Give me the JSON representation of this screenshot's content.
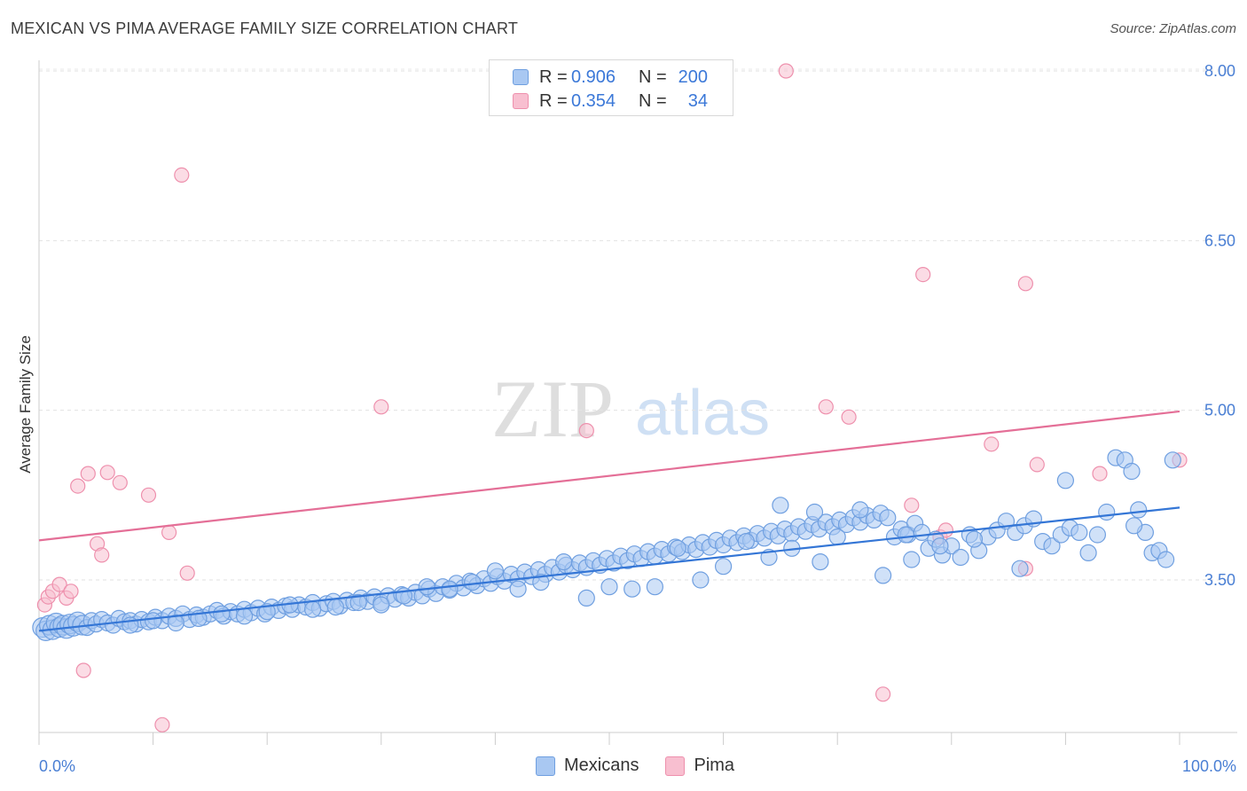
{
  "title": "MEXICAN VS PIMA AVERAGE FAMILY SIZE CORRELATION CHART",
  "source": "Source: ZipAtlas.com",
  "watermark": {
    "zip": "ZIP",
    "atlas": "atlas"
  },
  "legend": {
    "rows": [
      {
        "r_label": "R =",
        "r_value": "0.906",
        "n_label": "N =",
        "n_value": "200"
      },
      {
        "r_label": "R =",
        "r_value": "0.354",
        "n_label": "N =",
        "n_value": "34"
      }
    ]
  },
  "bottom_legend": {
    "mexicans": "Mexicans",
    "pima": "Pima"
  },
  "colors": {
    "mexicans_fill": "#a9c8f2",
    "mexicans_stroke": "#6f9fe0",
    "mexicans_line": "#3476d6",
    "pima_fill": "#f8bfd0",
    "pima_stroke": "#ee90ad",
    "pima_line": "#e46f97",
    "tick_text": "#4a7fd4"
  },
  "chart_data": {
    "type": "scatter",
    "title": "MEXICAN VS PIMA AVERAGE FAMILY SIZE CORRELATION CHART",
    "xlabel": "",
    "ylabel": "Average Family Size",
    "xlim": [
      0,
      100
    ],
    "ylim": [
      2.25,
      8.4
    ],
    "y_ticks": [
      3.5,
      5.0,
      6.5,
      8.0
    ],
    "y_tick_labels": [
      "3.50",
      "5.00",
      "6.50",
      "8.00"
    ],
    "x_tick_labels": [
      "0.0%",
      "100.0%"
    ],
    "series": [
      {
        "name": "Mexicans",
        "r": 0.906,
        "n": 200,
        "trend": {
          "x": [
            0,
            100
          ],
          "y": [
            3.05,
            4.14
          ]
        },
        "points": [
          [
            0.3,
            3.08
          ],
          [
            0.6,
            3.05
          ],
          [
            0.9,
            3.1
          ],
          [
            1.2,
            3.06
          ],
          [
            1.5,
            3.12
          ],
          [
            1.8,
            3.08
          ],
          [
            2.1,
            3.1
          ],
          [
            2.4,
            3.07
          ],
          [
            2.7,
            3.11
          ],
          [
            3.0,
            3.09
          ],
          [
            3.4,
            3.13
          ],
          [
            3.8,
            3.1
          ],
          [
            4.2,
            3.08
          ],
          [
            4.6,
            3.14
          ],
          [
            5.0,
            3.11
          ],
          [
            5.5,
            3.15
          ],
          [
            6.0,
            3.12
          ],
          [
            6.5,
            3.1
          ],
          [
            7.0,
            3.16
          ],
          [
            7.5,
            3.13
          ],
          [
            8.0,
            3.14
          ],
          [
            8.5,
            3.11
          ],
          [
            9.0,
            3.15
          ],
          [
            9.6,
            3.13
          ],
          [
            10.2,
            3.17
          ],
          [
            10.8,
            3.14
          ],
          [
            11.4,
            3.18
          ],
          [
            12.0,
            3.16
          ],
          [
            12.6,
            3.2
          ],
          [
            13.2,
            3.15
          ],
          [
            13.8,
            3.19
          ],
          [
            14.4,
            3.17
          ],
          [
            15.0,
            3.2
          ],
          [
            15.6,
            3.23
          ],
          [
            16.2,
            3.18
          ],
          [
            16.8,
            3.22
          ],
          [
            17.4,
            3.2
          ],
          [
            18.0,
            3.24
          ],
          [
            18.6,
            3.21
          ],
          [
            19.2,
            3.25
          ],
          [
            19.8,
            3.2
          ],
          [
            20.4,
            3.26
          ],
          [
            21.0,
            3.23
          ],
          [
            21.6,
            3.27
          ],
          [
            22.2,
            3.24
          ],
          [
            22.8,
            3.28
          ],
          [
            23.4,
            3.26
          ],
          [
            24.0,
            3.3
          ],
          [
            24.6,
            3.25
          ],
          [
            25.2,
            3.29
          ],
          [
            25.8,
            3.31
          ],
          [
            26.4,
            3.27
          ],
          [
            27.0,
            3.32
          ],
          [
            27.6,
            3.3
          ],
          [
            28.2,
            3.34
          ],
          [
            28.8,
            3.31
          ],
          [
            29.4,
            3.35
          ],
          [
            30.0,
            3.3
          ],
          [
            30.6,
            3.36
          ],
          [
            31.2,
            3.33
          ],
          [
            31.8,
            3.37
          ],
          [
            32.4,
            3.34
          ],
          [
            33.0,
            3.39
          ],
          [
            33.6,
            3.36
          ],
          [
            34.2,
            3.42
          ],
          [
            34.8,
            3.38
          ],
          [
            35.4,
            3.44
          ],
          [
            36.0,
            3.41
          ],
          [
            36.6,
            3.47
          ],
          [
            37.2,
            3.43
          ],
          [
            37.8,
            3.49
          ],
          [
            38.4,
            3.45
          ],
          [
            39.0,
            3.51
          ],
          [
            39.6,
            3.47
          ],
          [
            40.2,
            3.53
          ],
          [
            40.8,
            3.49
          ],
          [
            41.4,
            3.55
          ],
          [
            42.0,
            3.51
          ],
          [
            42.6,
            3.57
          ],
          [
            43.2,
            3.53
          ],
          [
            43.8,
            3.59
          ],
          [
            44.4,
            3.55
          ],
          [
            45.0,
            3.61
          ],
          [
            45.6,
            3.57
          ],
          [
            46.2,
            3.63
          ],
          [
            46.8,
            3.59
          ],
          [
            47.4,
            3.65
          ],
          [
            48.0,
            3.61
          ],
          [
            48.6,
            3.67
          ],
          [
            49.2,
            3.63
          ],
          [
            49.8,
            3.69
          ],
          [
            50.4,
            3.65
          ],
          [
            51.0,
            3.71
          ],
          [
            51.6,
            3.67
          ],
          [
            52.2,
            3.73
          ],
          [
            52.8,
            3.69
          ],
          [
            53.4,
            3.75
          ],
          [
            54.0,
            3.71
          ],
          [
            54.6,
            3.77
          ],
          [
            55.2,
            3.73
          ],
          [
            55.8,
            3.79
          ],
          [
            56.4,
            3.75
          ],
          [
            57.0,
            3.81
          ],
          [
            57.6,
            3.77
          ],
          [
            58.2,
            3.83
          ],
          [
            58.8,
            3.79
          ],
          [
            59.4,
            3.85
          ],
          [
            60.0,
            3.81
          ],
          [
            60.6,
            3.87
          ],
          [
            61.2,
            3.83
          ],
          [
            61.8,
            3.89
          ],
          [
            62.4,
            3.85
          ],
          [
            63.0,
            3.91
          ],
          [
            63.6,
            3.87
          ],
          [
            64.2,
            3.93
          ],
          [
            64.8,
            3.89
          ],
          [
            65.4,
            3.95
          ],
          [
            66.0,
            3.91
          ],
          [
            66.6,
            3.97
          ],
          [
            67.2,
            3.93
          ],
          [
            67.8,
            3.99
          ],
          [
            68.4,
            3.95
          ],
          [
            69.0,
            4.01
          ],
          [
            69.6,
            3.97
          ],
          [
            70.2,
            4.03
          ],
          [
            70.8,
            3.99
          ],
          [
            71.4,
            4.05
          ],
          [
            72.0,
            4.01
          ],
          [
            72.6,
            4.07
          ],
          [
            73.2,
            4.03
          ],
          [
            73.8,
            4.09
          ],
          [
            74.4,
            4.05
          ],
          [
            75.0,
            3.88
          ],
          [
            75.6,
            3.95
          ],
          [
            76.2,
            3.9
          ],
          [
            76.8,
            4.0
          ],
          [
            77.4,
            3.92
          ],
          [
            78.0,
            3.78
          ],
          [
            78.6,
            3.86
          ],
          [
            79.2,
            3.72
          ],
          [
            80.0,
            3.8
          ],
          [
            80.8,
            3.7
          ],
          [
            81.6,
            3.9
          ],
          [
            82.4,
            3.76
          ],
          [
            83.2,
            3.88
          ],
          [
            84.0,
            3.94
          ],
          [
            84.8,
            4.02
          ],
          [
            85.6,
            3.92
          ],
          [
            86.4,
            3.98
          ],
          [
            87.2,
            4.04
          ],
          [
            88.0,
            3.84
          ],
          [
            88.8,
            3.8
          ],
          [
            89.6,
            3.9
          ],
          [
            90.4,
            3.96
          ],
          [
            91.2,
            3.92
          ],
          [
            92.0,
            3.74
          ],
          [
            92.8,
            3.9
          ],
          [
            93.6,
            4.1
          ],
          [
            94.4,
            4.58
          ],
          [
            95.2,
            4.56
          ],
          [
            95.8,
            4.46
          ],
          [
            96.4,
            4.12
          ],
          [
            97.0,
            3.92
          ],
          [
            97.6,
            3.74
          ],
          [
            98.2,
            3.76
          ],
          [
            98.8,
            3.68
          ],
          [
            99.4,
            4.56
          ],
          [
            90.0,
            4.38
          ],
          [
            72.0,
            4.12
          ],
          [
            76.0,
            3.9
          ],
          [
            65.0,
            4.16
          ],
          [
            68.0,
            4.1
          ],
          [
            70.0,
            3.88
          ],
          [
            60.0,
            3.62
          ],
          [
            58.0,
            3.5
          ],
          [
            56.0,
            3.78
          ],
          [
            54.0,
            3.44
          ],
          [
            52.0,
            3.42
          ],
          [
            50.0,
            3.44
          ],
          [
            48.0,
            3.34
          ],
          [
            46.0,
            3.66
          ],
          [
            44.0,
            3.48
          ],
          [
            42.0,
            3.42
          ],
          [
            40.0,
            3.58
          ],
          [
            38.0,
            3.48
          ],
          [
            36.0,
            3.42
          ],
          [
            34.0,
            3.44
          ],
          [
            32.0,
            3.36
          ],
          [
            30.0,
            3.28
          ],
          [
            28.0,
            3.3
          ],
          [
            26.0,
            3.26
          ],
          [
            24.0,
            3.24
          ],
          [
            22.0,
            3.28
          ],
          [
            20.0,
            3.22
          ],
          [
            18.0,
            3.18
          ],
          [
            16.0,
            3.2
          ],
          [
            14.0,
            3.16
          ],
          [
            12.0,
            3.12
          ],
          [
            10.0,
            3.14
          ],
          [
            8.0,
            3.1
          ],
          [
            62.0,
            3.84
          ],
          [
            64.0,
            3.7
          ],
          [
            66.0,
            3.78
          ],
          [
            74.0,
            3.54
          ],
          [
            76.5,
            3.68
          ],
          [
            79.0,
            3.8
          ],
          [
            82.0,
            3.86
          ],
          [
            86.0,
            3.6
          ],
          [
            96.0,
            3.98
          ],
          [
            68.5,
            3.66
          ]
        ]
      },
      {
        "name": "Pima",
        "r": 0.354,
        "n": 34,
        "trend": {
          "x": [
            0,
            100
          ],
          "y": [
            3.85,
            4.99
          ]
        },
        "points": [
          [
            0.5,
            3.28
          ],
          [
            0.8,
            3.35
          ],
          [
            1.2,
            3.4
          ],
          [
            1.8,
            3.46
          ],
          [
            2.4,
            3.34
          ],
          [
            2.8,
            3.4
          ],
          [
            3.4,
            4.33
          ],
          [
            3.9,
            2.7
          ],
          [
            4.3,
            4.44
          ],
          [
            5.1,
            3.82
          ],
          [
            5.5,
            3.72
          ],
          [
            6.0,
            4.45
          ],
          [
            7.1,
            4.36
          ],
          [
            9.6,
            4.25
          ],
          [
            10.8,
            2.22
          ],
          [
            11.4,
            3.92
          ],
          [
            12.5,
            7.08
          ],
          [
            13.0,
            3.56
          ],
          [
            30.0,
            5.03
          ],
          [
            48.0,
            4.82
          ],
          [
            65.5,
            8.0
          ],
          [
            69.0,
            5.03
          ],
          [
            71.0,
            4.94
          ],
          [
            74.0,
            2.49
          ],
          [
            76.5,
            4.16
          ],
          [
            77.5,
            6.2
          ],
          [
            79.0,
            3.88
          ],
          [
            79.5,
            3.94
          ],
          [
            83.5,
            4.7
          ],
          [
            86.5,
            3.6
          ],
          [
            86.5,
            6.12
          ],
          [
            87.5,
            4.52
          ],
          [
            93.0,
            4.44
          ],
          [
            100.0,
            4.56
          ]
        ]
      }
    ]
  }
}
